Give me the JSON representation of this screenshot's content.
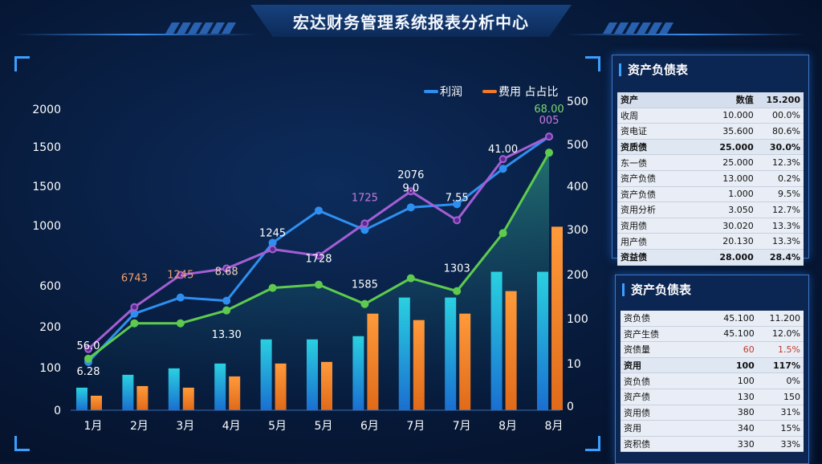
{
  "header": {
    "title": "宏达财务管理系统报表分析中心"
  },
  "chart_data": {
    "type": "bar",
    "categories": [
      "1月",
      "2月",
      "3月",
      "4月",
      "5月",
      "5月",
      "6月",
      "7月",
      "7月",
      "8月",
      "8月"
    ],
    "legend": [
      "利润",
      "费用 占占比"
    ],
    "left_ticks": [
      "0",
      "100",
      "200",
      "600",
      "1000",
      "1500",
      "1500",
      "2000"
    ],
    "right_ticks": [
      "0",
      "10",
      "100",
      "200",
      "300",
      "400",
      "500",
      "500"
    ],
    "colors": {
      "profit": "#2f8ff0",
      "cost": "#f07a2a",
      "green": "#5ecb4e",
      "purple": "#a45ed4",
      "bar_blue": "#20b5d9"
    },
    "bar_series": [
      {
        "key": "bar_blue",
        "values": [
          70,
          110,
          130,
          145,
          220,
          220,
          230,
          350,
          350,
          430,
          430
        ]
      },
      {
        "key": "cost",
        "values": [
          45,
          75,
          70,
          105,
          145,
          150,
          300,
          280,
          300,
          370,
          570
        ]
      }
    ],
    "line_series": [
      {
        "key": "profit",
        "values": [
          150,
          300,
          350,
          340,
          520,
          620,
          560,
          630,
          640,
          750,
          850
        ]
      },
      {
        "key": "purple",
        "values": [
          190,
          320,
          420,
          440,
          500,
          480,
          580,
          680,
          590,
          780,
          850
        ]
      },
      {
        "key": "green",
        "values": [
          160,
          270,
          270,
          310,
          380,
          390,
          330,
          410,
          370,
          550,
          800
        ]
      }
    ],
    "data_labels": [
      {
        "text": "56.0",
        "x": 0,
        "v": 190,
        "color": "#ffffff"
      },
      {
        "text": "6.28",
        "x": 0,
        "v": 110,
        "color": "#ffffff"
      },
      {
        "text": "6743",
        "x": 1,
        "v": 400,
        "color": "#f0a070"
      },
      {
        "text": "1245",
        "x": 2,
        "v": 410,
        "color": "#f0a070"
      },
      {
        "text": "8.68",
        "x": 3,
        "v": 420,
        "color": "#f0d0c0"
      },
      {
        "text": "13.30",
        "x": 3,
        "v": 225,
        "color": "#ffffff"
      },
      {
        "text": "1245",
        "x": 4,
        "v": 540,
        "color": "#ffffff"
      },
      {
        "text": "1728",
        "x": 5,
        "v": 460,
        "color": "#ffffff"
      },
      {
        "text": "1725",
        "x": 6,
        "v": 650,
        "color": "#c77be0"
      },
      {
        "text": "1585",
        "x": 6,
        "v": 380,
        "color": "#ffffff"
      },
      {
        "text": "2076",
        "x": 7,
        "v": 720,
        "color": "#ffffff"
      },
      {
        "text": "9.0",
        "x": 7,
        "v": 680,
        "color": "#ffffff"
      },
      {
        "text": "7.55",
        "x": 8,
        "v": 650,
        "color": "#ffffff"
      },
      {
        "text": "1303",
        "x": 8,
        "v": 430,
        "color": "#ffffff"
      },
      {
        "text": "41.00",
        "x": 9,
        "v": 800,
        "color": "#ffffff"
      },
      {
        "text": "68.00",
        "x": 10,
        "v": 925,
        "color": "#7ad870"
      },
      {
        "text": "005",
        "x": 10,
        "v": 890,
        "color": "#c77be0"
      }
    ]
  },
  "table1": {
    "title": "资产负债表",
    "header": [
      "资产",
      "数值",
      "15.200"
    ],
    "rows": [
      [
        "收周",
        "10.000",
        "00.0%"
      ],
      [
        "资电证",
        "35.600",
        "80.6%"
      ],
      [
        "资质债",
        "25.000",
        "30.0%"
      ],
      [
        "东一债",
        "25.000",
        "12.3%"
      ],
      [
        "资产负债",
        "13.000",
        "0.2%"
      ],
      [
        "资产负债",
        "1.000",
        "9.5%"
      ],
      [
        "资用分析",
        "3.050",
        "12.7%"
      ],
      [
        "资用债",
        "30.020",
        "13.3%"
      ],
      [
        "用产债",
        "20.130",
        "13.3%"
      ],
      [
        "资益债",
        "28.000",
        "28.4%"
      ]
    ]
  },
  "table2": {
    "title": "资产负债表",
    "rows": [
      [
        "资负债",
        "45.100",
        "11.200"
      ],
      [
        "资产生债",
        "45.100",
        "12.0%"
      ],
      [
        "资债量",
        "60",
        "1.5%"
      ],
      [
        "资用",
        "100",
        "117%"
      ],
      [
        "资负债",
        "100",
        "0%"
      ],
      [
        "资产债",
        "130",
        "150"
      ],
      [
        "资用债",
        "380",
        "31%"
      ],
      [
        "资用",
        "340",
        "15%"
      ],
      [
        "资积债",
        "330",
        "33%"
      ]
    ]
  }
}
